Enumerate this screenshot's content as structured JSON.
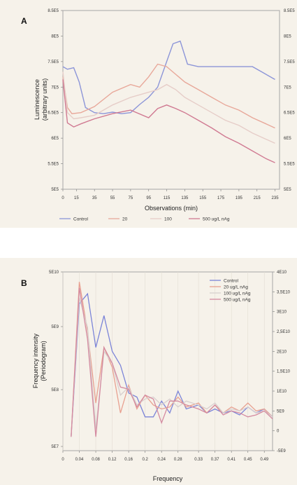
{
  "chart_data": [
    {
      "panel": "A",
      "type": "line",
      "xlabel": "Observations (min)",
      "ylabel": "Luminescence (arbitrary units)",
      "x_ticks": [
        "0",
        "15",
        "35",
        "55",
        "75",
        "95",
        "115",
        "135",
        "155",
        "175",
        "195",
        "215",
        "235"
      ],
      "y_ticks": [
        "5E5",
        "5.5E5",
        "6E5",
        "6.5E5",
        "7E5",
        "7.5E5",
        "8E5",
        "8.5E5"
      ],
      "xlim": [
        0,
        240
      ],
      "ylim": [
        500000,
        850000
      ],
      "legend": [
        "Control",
        "20",
        "100",
        "500 ug/L nAg"
      ],
      "series": [
        {
          "name": "Control",
          "color": "#8c95d8",
          "x": [
            0,
            5,
            12,
            18,
            25,
            35,
            45,
            55,
            65,
            75,
            85,
            95,
            105,
            115,
            122,
            130,
            138,
            150,
            165,
            180,
            195,
            210,
            220,
            235
          ],
          "y": [
            740000,
            735000,
            738000,
            710000,
            660000,
            650000,
            648000,
            651000,
            648000,
            650000,
            666000,
            680000,
            700000,
            750000,
            785000,
            790000,
            745000,
            740000,
            740000,
            740000,
            740000,
            740000,
            730000,
            715000
          ]
        },
        {
          "name": "20",
          "color": "#e8a89a",
          "x": [
            0,
            5,
            10,
            20,
            35,
            55,
            75,
            85,
            95,
            105,
            115,
            125,
            135,
            150,
            165,
            180,
            195,
            210,
            225,
            235
          ],
          "y": [
            720000,
            660000,
            648000,
            650000,
            662000,
            690000,
            705000,
            700000,
            720000,
            745000,
            740000,
            725000,
            710000,
            695000,
            680000,
            665000,
            655000,
            640000,
            628000,
            620000
          ]
        },
        {
          "name": "100",
          "color": "#e6cdc8",
          "x": [
            0,
            5,
            12,
            20,
            35,
            55,
            75,
            95,
            105,
            115,
            125,
            135,
            150,
            165,
            180,
            195,
            210,
            225,
            235
          ],
          "y": [
            730000,
            650000,
            638000,
            640000,
            645000,
            665000,
            680000,
            690000,
            695000,
            705000,
            695000,
            680000,
            665000,
            650000,
            635000,
            625000,
            610000,
            598000,
            590000
          ]
        },
        {
          "name": "500 ug/L nAg",
          "color": "#d07a92",
          "x": [
            0,
            5,
            12,
            20,
            35,
            55,
            75,
            95,
            105,
            115,
            125,
            135,
            150,
            165,
            180,
            195,
            210,
            225,
            235
          ],
          "y": [
            715000,
            630000,
            622000,
            628000,
            638000,
            648000,
            655000,
            640000,
            658000,
            665000,
            658000,
            650000,
            635000,
            620000,
            603000,
            590000,
            575000,
            560000,
            552000
          ]
        }
      ]
    },
    {
      "panel": "B",
      "type": "line",
      "xlabel": "Frequency",
      "ylabel": "Frequency intensity (Periodogram)",
      "x_ticks": [
        "0",
        "0.04",
        "0.08",
        "0.12",
        "0.16",
        "0.2",
        "0.24",
        "0.28",
        "0.33",
        "0.37",
        "0.41",
        "0.45",
        "0.49"
      ],
      "y_ticks_left": [
        "5E7",
        "5E8",
        "5E9",
        "5E10"
      ],
      "y_ticks_right": [
        "-5E9",
        "0",
        "5E9",
        "1E10",
        "1,5E10",
        "2E10",
        "2,5E10",
        "3E10",
        "3,5E10",
        "4E10"
      ],
      "xlim": [
        0,
        0.51
      ],
      "legend": [
        "Control",
        "20 ug/L nAg",
        "100 ug/L nAg",
        "500 ug/L nAg"
      ],
      "series": [
        {
          "name": "Control",
          "color": "#7b84d8",
          "x": [
            0.02,
            0.04,
            0.06,
            0.08,
            0.1,
            0.12,
            0.14,
            0.16,
            0.18,
            0.2,
            0.22,
            0.24,
            0.26,
            0.28,
            0.3,
            0.33,
            0.35,
            0.37,
            0.39,
            0.41,
            0.43,
            0.45,
            0.47,
            0.49,
            0.51
          ],
          "y": [
            -1500000000,
            32000000000,
            34500000000,
            21000000000,
            29000000000,
            20000000000,
            16500000000,
            9500000000,
            8500000000,
            3500000000,
            3500000000,
            7500000000,
            4500000000,
            10000000000,
            5500000000,
            6500000000,
            4500000000,
            5500000000,
            4500000000,
            5000000000,
            4000000000,
            6000000000,
            4500000000,
            5500000000,
            3500000000
          ]
        },
        {
          "name": "20 ug/L nAg",
          "color": "#e8a090",
          "x": [
            0.02,
            0.04,
            0.06,
            0.08,
            0.1,
            0.12,
            0.14,
            0.16,
            0.18,
            0.2,
            0.22,
            0.24,
            0.26,
            0.28,
            0.3,
            0.33,
            0.35,
            0.37,
            0.39,
            0.41,
            0.43,
            0.45,
            0.47,
            0.49,
            0.51
          ],
          "y": [
            -1500000000,
            37500000000,
            25000000000,
            7000000000,
            21000000000,
            16000000000,
            4500000000,
            11500000000,
            5500000000,
            9000000000,
            6500000000,
            5500000000,
            6000000000,
            8500000000,
            6000000000,
            7000000000,
            4500000000,
            6500000000,
            4500000000,
            6000000000,
            5000000000,
            7000000000,
            5000000000,
            5500000000,
            3500000000
          ]
        },
        {
          "name": "100 ug/L nAg",
          "color": "#d8cfcf",
          "x": [
            0.02,
            0.04,
            0.06,
            0.08,
            0.1,
            0.12,
            0.14,
            0.16,
            0.18,
            0.2,
            0.22,
            0.24,
            0.26,
            0.28,
            0.3,
            0.33,
            0.35,
            0.37,
            0.39,
            0.41,
            0.43,
            0.45,
            0.47,
            0.49,
            0.51
          ],
          "y": [
            -1500000000,
            33500000000,
            26000000000,
            500000000,
            20000000000,
            17000000000,
            9000000000,
            11000000000,
            6500000000,
            8000000000,
            8500000000,
            6500000000,
            8000000000,
            6000000000,
            7500000000,
            6500000000,
            5500000000,
            7000000000,
            4500000000,
            5500000000,
            5000000000,
            6000000000,
            4500000000,
            5000000000,
            3500000000
          ]
        },
        {
          "name": "500 ug/L nAg",
          "color": "#d48aa0",
          "x": [
            0.02,
            0.04,
            0.06,
            0.08,
            0.1,
            0.12,
            0.14,
            0.16,
            0.18,
            0.2,
            0.22,
            0.24,
            0.26,
            0.28,
            0.3,
            0.33,
            0.35,
            0.37,
            0.39,
            0.41,
            0.43,
            0.45,
            0.47,
            0.49,
            0.51
          ],
          "y": [
            -1500000000,
            36000000000,
            23000000000,
            -1500000000,
            21000000000,
            17000000000,
            11000000000,
            10500000000,
            6000000000,
            9000000000,
            8000000000,
            2000000000,
            7500000000,
            7500000000,
            6500000000,
            5500000000,
            4500000000,
            6500000000,
            4000000000,
            5000000000,
            4500000000,
            3500000000,
            4000000000,
            5000000000,
            3000000000
          ]
        }
      ]
    }
  ],
  "panelA": {
    "letter": "A",
    "ylabel_line1": "Luminescence",
    "ylabel_line2": "(arbitrary units)"
  },
  "panelB": {
    "letter": "B",
    "ylabel_line1": "Frequency intensity",
    "ylabel_line2": "(Periodogram)"
  }
}
